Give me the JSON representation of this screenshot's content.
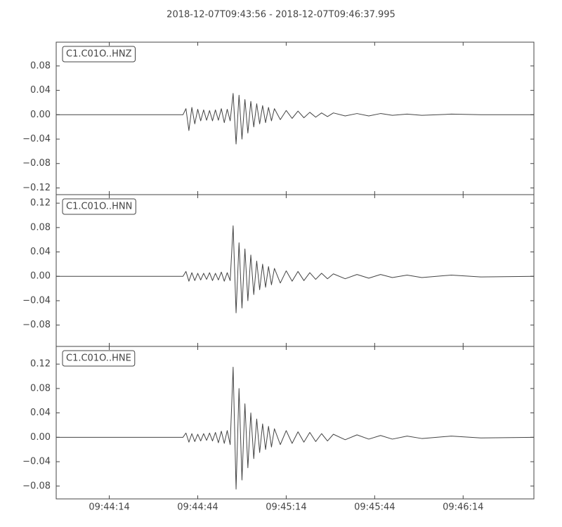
{
  "title": "2018-12-07T09:43:56  -  2018-12-07T09:46:37.995",
  "chart_data": [
    {
      "type": "line",
      "label": "C1.C01O..HNZ",
      "color": "#444444",
      "xlim": [
        "09:43:56",
        "09:46:38"
      ],
      "ylim": [
        -0.131,
        0.119
      ],
      "yticks": [
        {
          "value": 0.08,
          "label": "0.08"
        },
        {
          "value": 0.04,
          "label": "0.04"
        },
        {
          "value": 0,
          "label": "0.00"
        },
        {
          "value": -0.04,
          "label": "−0.04"
        },
        {
          "value": -0.08,
          "label": "−0.08"
        },
        {
          "value": -0.12,
          "label": "−0.12"
        }
      ],
      "x": [
        "09:43:56",
        "09:44:20",
        "09:44:39",
        "09:44:40",
        "09:44:41",
        "09:44:42",
        "09:44:43",
        "09:44:44",
        "09:44:45",
        "09:44:46",
        "09:44:47",
        "09:44:48",
        "09:44:49",
        "09:44:50",
        "09:44:51",
        "09:44:52",
        "09:44:53",
        "09:44:54",
        "09:44:55",
        "09:44:56",
        "09:44:57",
        "09:44:58",
        "09:44:59",
        "09:45:00",
        "09:45:01",
        "09:45:02",
        "09:45:03",
        "09:45:04",
        "09:45:05",
        "09:45:06",
        "09:45:07",
        "09:45:08",
        "09:45:09",
        "09:45:10",
        "09:45:12",
        "09:45:14",
        "09:45:16",
        "09:45:18",
        "09:45:20",
        "09:45:22",
        "09:45:24",
        "09:45:26",
        "09:45:28",
        "09:45:30",
        "09:45:34",
        "09:45:38",
        "09:45:42",
        "09:45:46",
        "09:45:50",
        "09:45:55",
        "09:46:00",
        "09:46:10",
        "09:46:20",
        "09:46:38"
      ],
      "values": [
        0,
        0,
        0,
        0.01,
        -0.026,
        0.012,
        -0.015,
        0.009,
        -0.01,
        0.008,
        -0.009,
        0.007,
        -0.01,
        0.008,
        -0.009,
        0.01,
        -0.013,
        0.009,
        -0.01,
        0.035,
        -0.048,
        0.032,
        -0.04,
        0.025,
        -0.03,
        0.022,
        -0.02,
        0.018,
        -0.015,
        0.015,
        -0.013,
        0.012,
        -0.01,
        0.01,
        -0.008,
        0.007,
        -0.006,
        0.006,
        -0.005,
        0.004,
        -0.004,
        0.003,
        -0.003,
        0.003,
        -0.002,
        0.002,
        -0.002,
        0.002,
        -0.001,
        0.001,
        -0.001,
        0.001,
        0,
        0
      ]
    },
    {
      "type": "line",
      "label": "C1.C01O..HNN",
      "color": "#444444",
      "xlim": [
        "09:43:56",
        "09:46:38"
      ],
      "ylim": [
        -0.115,
        0.134
      ],
      "yticks": [
        {
          "value": 0.12,
          "label": "0.12"
        },
        {
          "value": 0.08,
          "label": "0.08"
        },
        {
          "value": 0.04,
          "label": "0.04"
        },
        {
          "value": 0,
          "label": "0.00"
        },
        {
          "value": -0.04,
          "label": "−0.04"
        },
        {
          "value": -0.08,
          "label": "−0.08"
        }
      ],
      "x": [
        "09:43:56",
        "09:44:20",
        "09:44:39",
        "09:44:40",
        "09:44:41",
        "09:44:42",
        "09:44:43",
        "09:44:44",
        "09:44:45",
        "09:44:46",
        "09:44:47",
        "09:44:48",
        "09:44:49",
        "09:44:50",
        "09:44:51",
        "09:44:52",
        "09:44:53",
        "09:44:54",
        "09:44:55",
        "09:44:56",
        "09:44:57",
        "09:44:58",
        "09:44:59",
        "09:45:00",
        "09:45:01",
        "09:45:02",
        "09:45:03",
        "09:45:04",
        "09:45:05",
        "09:45:06",
        "09:45:07",
        "09:45:08",
        "09:45:09",
        "09:45:10",
        "09:45:12",
        "09:45:14",
        "09:45:16",
        "09:45:18",
        "09:45:20",
        "09:45:22",
        "09:45:24",
        "09:45:26",
        "09:45:28",
        "09:45:30",
        "09:45:34",
        "09:45:38",
        "09:45:42",
        "09:45:46",
        "09:45:50",
        "09:45:55",
        "09:46:00",
        "09:46:10",
        "09:46:20",
        "09:46:38"
      ],
      "values": [
        0,
        0,
        0,
        0.008,
        -0.008,
        0.006,
        -0.007,
        0.005,
        -0.006,
        0.005,
        -0.005,
        0.006,
        -0.007,
        0.005,
        -0.006,
        0.007,
        -0.008,
        0.006,
        -0.007,
        0.083,
        -0.06,
        0.055,
        -0.052,
        0.045,
        -0.04,
        0.035,
        -0.03,
        0.025,
        -0.022,
        0.02,
        -0.018,
        0.016,
        -0.014,
        0.013,
        -0.011,
        0.009,
        -0.008,
        0.008,
        -0.007,
        0.006,
        -0.005,
        0.005,
        -0.004,
        0.004,
        -0.004,
        0.003,
        -0.003,
        0.003,
        -0.002,
        0.002,
        -0.002,
        0.002,
        -0.001,
        0
      ]
    },
    {
      "type": "line",
      "label": "C1.C01O..HNE",
      "color": "#444444",
      "xlim": [
        "09:43:56",
        "09:46:38"
      ],
      "ylim": [
        -0.101,
        0.149
      ],
      "yticks": [
        {
          "value": 0.12,
          "label": "0.12"
        },
        {
          "value": 0.08,
          "label": "0.08"
        },
        {
          "value": 0.04,
          "label": "0.04"
        },
        {
          "value": 0,
          "label": "0.00"
        },
        {
          "value": -0.04,
          "label": "−0.04"
        },
        {
          "value": -0.08,
          "label": "−0.08"
        }
      ],
      "xticks": [
        "09:44:14",
        "09:44:44",
        "09:45:14",
        "09:45:44",
        "09:46:14"
      ],
      "x": [
        "09:43:56",
        "09:44:20",
        "09:44:39",
        "09:44:40",
        "09:44:41",
        "09:44:42",
        "09:44:43",
        "09:44:44",
        "09:44:45",
        "09:44:46",
        "09:44:47",
        "09:44:48",
        "09:44:49",
        "09:44:50",
        "09:44:51",
        "09:44:52",
        "09:44:53",
        "09:44:54",
        "09:44:55",
        "09:44:56",
        "09:44:57",
        "09:44:58",
        "09:44:59",
        "09:45:00",
        "09:45:01",
        "09:45:02",
        "09:45:03",
        "09:45:04",
        "09:45:05",
        "09:45:06",
        "09:45:07",
        "09:45:08",
        "09:45:09",
        "09:45:10",
        "09:45:12",
        "09:45:14",
        "09:45:16",
        "09:45:18",
        "09:45:20",
        "09:45:22",
        "09:45:24",
        "09:45:26",
        "09:45:28",
        "09:45:30",
        "09:45:34",
        "09:45:38",
        "09:45:42",
        "09:45:46",
        "09:45:50",
        "09:45:55",
        "09:46:00",
        "09:46:10",
        "09:46:20",
        "09:46:38"
      ],
      "values": [
        0,
        0,
        0,
        0.007,
        -0.008,
        0.006,
        -0.007,
        0.005,
        -0.006,
        0.006,
        -0.005,
        0.007,
        -0.006,
        0.008,
        -0.009,
        0.01,
        -0.01,
        0.011,
        -0.012,
        0.115,
        -0.085,
        0.08,
        -0.07,
        0.055,
        -0.05,
        0.04,
        -0.035,
        0.03,
        -0.025,
        0.022,
        -0.02,
        0.018,
        -0.016,
        0.014,
        -0.012,
        0.011,
        -0.01,
        0.009,
        -0.008,
        0.008,
        -0.007,
        0.006,
        -0.006,
        0.005,
        -0.004,
        0.004,
        -0.003,
        0.003,
        -0.003,
        0.002,
        -0.002,
        0.002,
        -0.001,
        0
      ]
    }
  ]
}
